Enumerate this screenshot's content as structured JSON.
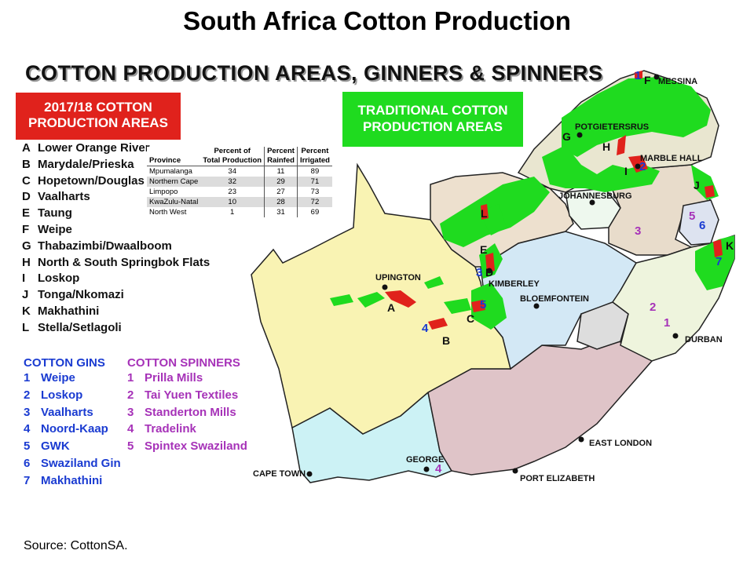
{
  "title": "South Africa Cotton Production",
  "subtitle": "COTTON PRODUCTION AREAS, GINNERS & SPINNERS",
  "legend_boxes": {
    "red_line1": "2017/18 COTTON",
    "red_line2": "PRODUCTION AREAS",
    "green_line1": "TRADITIONAL COTTON",
    "green_line2": "PRODUCTION AREAS",
    "colors": {
      "red": "#e0221c",
      "green": "#1fdb1f"
    }
  },
  "production_areas": [
    {
      "key": "A",
      "name": "Lower Orange River"
    },
    {
      "key": "B",
      "name": "Marydale/Prieska"
    },
    {
      "key": "C",
      "name": "Hopetown/Douglas"
    },
    {
      "key": "D",
      "name": "Vaalharts"
    },
    {
      "key": "E",
      "name": "Taung"
    },
    {
      "key": "F",
      "name": "Weipe"
    },
    {
      "key": "G",
      "name": "Thabazimbi/Dwaalboom"
    },
    {
      "key": "H",
      "name": "North & South Springbok Flats"
    },
    {
      "key": "I",
      "name": "Loskop"
    },
    {
      "key": "J",
      "name": "Tonga/Nkomazi"
    },
    {
      "key": "K",
      "name": "Makhathini"
    },
    {
      "key": "L",
      "name": "Stella/Setlagoli"
    }
  ],
  "gins": {
    "heading": "COTTON GINS",
    "items": [
      {
        "num": "1",
        "name": "Weipe"
      },
      {
        "num": "2",
        "name": "Loskop"
      },
      {
        "num": "3",
        "name": "Vaalharts"
      },
      {
        "num": "4",
        "name": "Noord-Kaap"
      },
      {
        "num": "5",
        "name": "GWK"
      },
      {
        "num": "6",
        "name": "Swaziland Gin"
      },
      {
        "num": "7",
        "name": "Makhathini"
      }
    ],
    "color": "#1a3bd1"
  },
  "spinners": {
    "heading": "COTTON SPINNERS",
    "items": [
      {
        "num": "1",
        "name": "Prilla Mills"
      },
      {
        "num": "2",
        "name": "Tai Yuen Textiles"
      },
      {
        "num": "3",
        "name": "Standerton Mills"
      },
      {
        "num": "4",
        "name": "Tradelink"
      },
      {
        "num": "5",
        "name": "Spintex Swaziland"
      }
    ],
    "color": "#a632b8"
  },
  "table": {
    "headers": {
      "province": "Province",
      "total_1": "Percent of",
      "total_2": "Total Production",
      "rainfed_1": "Percent",
      "rainfed_2": "Rainfed",
      "irrigated_1": "Percent",
      "irrigated_2": "Irrigated"
    },
    "rows": [
      {
        "province": "Mpumalanga",
        "total": "34",
        "rainfed": "11",
        "irrigated": "89"
      },
      {
        "province": "Northern Cape",
        "total": "32",
        "rainfed": "29",
        "irrigated": "71"
      },
      {
        "province": "Limpopo",
        "total": "23",
        "rainfed": "27",
        "irrigated": "73"
      },
      {
        "province": "KwaZulu-Natal",
        "total": "10",
        "rainfed": "28",
        "irrigated": "72"
      },
      {
        "province": "North West",
        "total": "1",
        "rainfed": "31",
        "irrigated": "69"
      }
    ]
  },
  "cities": {
    "messina": "MESSINA",
    "potgietersrus": "POTGIETERSRUS",
    "marble_hall": "MARBLE HALL",
    "johannesburg": "JOHANNESBURG",
    "upington": "UPINGTON",
    "kimberley": "KIMBERLEY",
    "bloemfontein": "BLOEMFONTEIN",
    "durban": "DURBAN",
    "east_london": "EAST LONDON",
    "george": "GEORGE",
    "cape_town": "CAPE TOWN",
    "port_elizabeth": "PORT ELIZABETH"
  },
  "map_region_labels": {
    "A": "A",
    "B": "B",
    "C": "C",
    "D": "D",
    "E": "E",
    "F": "F",
    "G": "G",
    "H": "H",
    "I": "I",
    "J": "J",
    "K": "K",
    "L": "L"
  },
  "map_gin_labels": {
    "g1": "1",
    "g2": "2",
    "g3": "3",
    "g4": "4",
    "g5": "5",
    "g6": "6",
    "g7": "7"
  },
  "map_spinner_labels": {
    "s1": "1",
    "s2": "2",
    "s3": "3",
    "s4": "4",
    "s5": "5"
  },
  "source": "Source: CottonSA."
}
